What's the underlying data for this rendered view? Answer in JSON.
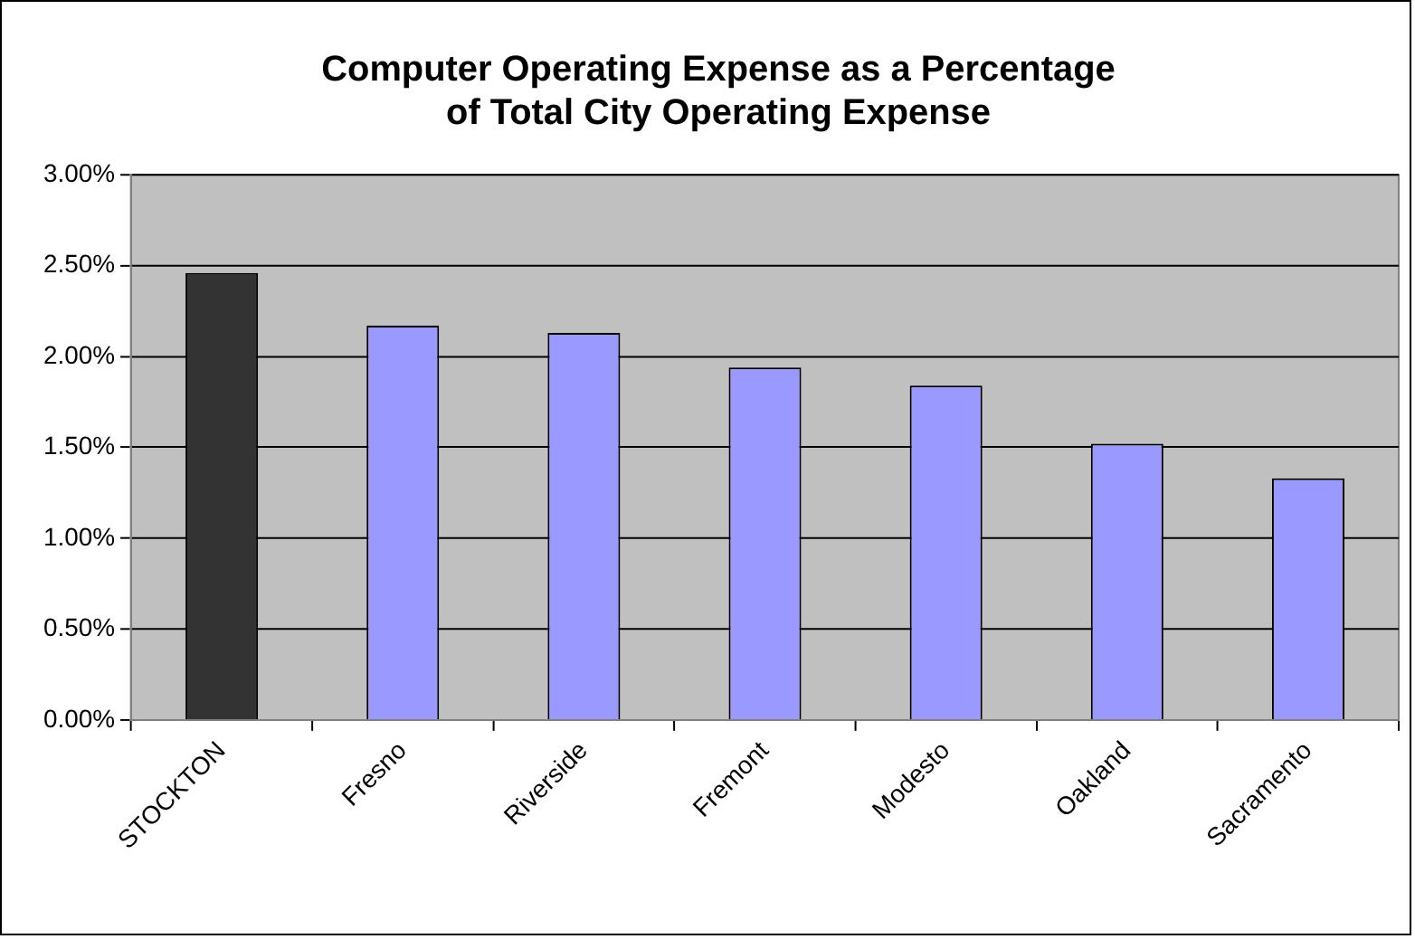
{
  "chart_data": {
    "type": "bar",
    "title": "Computer Operating Expense as a Percentage\nof Total City Operating Expense",
    "categories": [
      "STOCKTON",
      "Fresno",
      "Riverside",
      "Fremont",
      "Modesto",
      "Oakland",
      "Sacramento"
    ],
    "values": [
      2.46,
      2.17,
      2.13,
      1.94,
      1.84,
      1.52,
      1.33
    ],
    "colors": [
      "#333333",
      "#9999ff",
      "#9999ff",
      "#9999ff",
      "#9999ff",
      "#9999ff",
      "#9999ff"
    ],
    "ylim": [
      0,
      3
    ],
    "yticks": [
      {
        "value": 0,
        "label": "0.00%"
      },
      {
        "value": 0.5,
        "label": "0.50%"
      },
      {
        "value": 1,
        "label": "1.00%"
      },
      {
        "value": 1.5,
        "label": "1.50%"
      },
      {
        "value": 2,
        "label": "2.00%"
      },
      {
        "value": 2.5,
        "label": "2.50%"
      },
      {
        "value": 3,
        "label": "3.00%"
      }
    ],
    "grid": "y",
    "legend": false
  }
}
